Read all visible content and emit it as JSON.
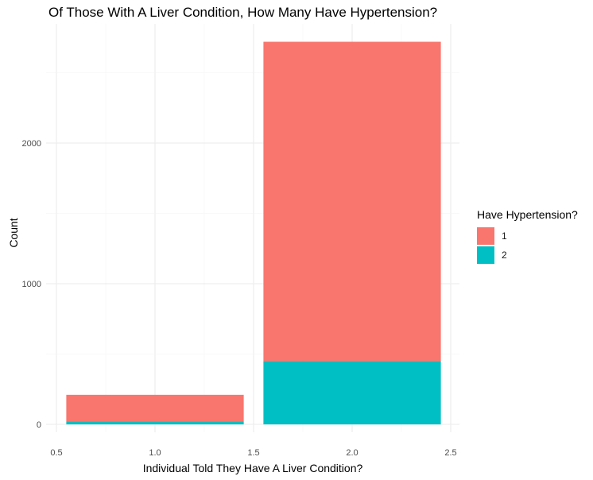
{
  "chart_data": {
    "type": "bar",
    "stacked": true,
    "title": "Of Those With A Liver Condition, How Many Have Hypertension?",
    "xlabel": "Individual Told They Have A Liver Condition?",
    "ylabel": "Count",
    "x": [
      1,
      2
    ],
    "xlim": [
      0.5,
      2.5
    ],
    "xticks": [
      "0.5",
      "1.0",
      "1.5",
      "2.0",
      "2.5"
    ],
    "ylim": [
      0,
      2700
    ],
    "yticks": [
      "0",
      "1000",
      "2000"
    ],
    "grid": true,
    "legend": {
      "title": "Have Hypertension?",
      "placement": "right"
    },
    "series": [
      {
        "name": "1",
        "color": "#F8766D",
        "values": [
          190,
          2270
        ]
      },
      {
        "name": "2",
        "color": "#00BFC4",
        "values": [
          20,
          450
        ]
      }
    ]
  }
}
